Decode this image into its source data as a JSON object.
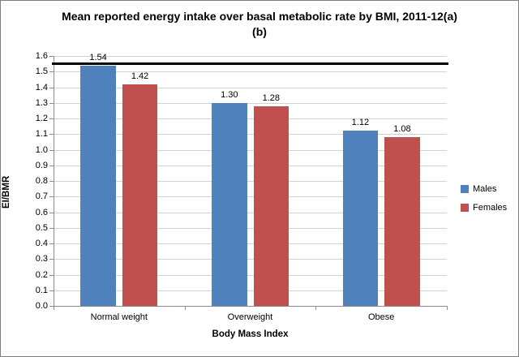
{
  "chart_data": {
    "type": "bar",
    "title": "Mean reported energy intake over basal metabolic rate by BMI, 2011-12(a)(b)",
    "xlabel": "Body Mass Index",
    "ylabel": "EI/BMR",
    "categories": [
      "Normal weight",
      "Overweight",
      "Obese"
    ],
    "series": [
      {
        "name": "Males",
        "color": "#4F81BD",
        "values": [
          1.54,
          1.3,
          1.12
        ]
      },
      {
        "name": "Females",
        "color": "#C0504D",
        "values": [
          1.42,
          1.28,
          1.08
        ]
      }
    ],
    "data_labels": [
      [
        "1.54",
        "1.30",
        "1.12"
      ],
      [
        "1.42",
        "1.28",
        "1.08"
      ]
    ],
    "ylim": [
      0.0,
      1.6
    ],
    "ytick_step": 0.1,
    "ytick_labels": [
      "0.0",
      "0.1",
      "0.2",
      "0.3",
      "0.4",
      "0.5",
      "0.6",
      "0.7",
      "0.8",
      "0.9",
      "1.0",
      "1.1",
      "1.2",
      "1.3",
      "1.4",
      "1.5",
      "1.6"
    ],
    "reference_line": {
      "value": 1.55,
      "color": "#000000"
    },
    "grid": true,
    "legend_position": "right",
    "gridline_color": "#D3D3D3",
    "axis_color": "#8C8C8C"
  }
}
